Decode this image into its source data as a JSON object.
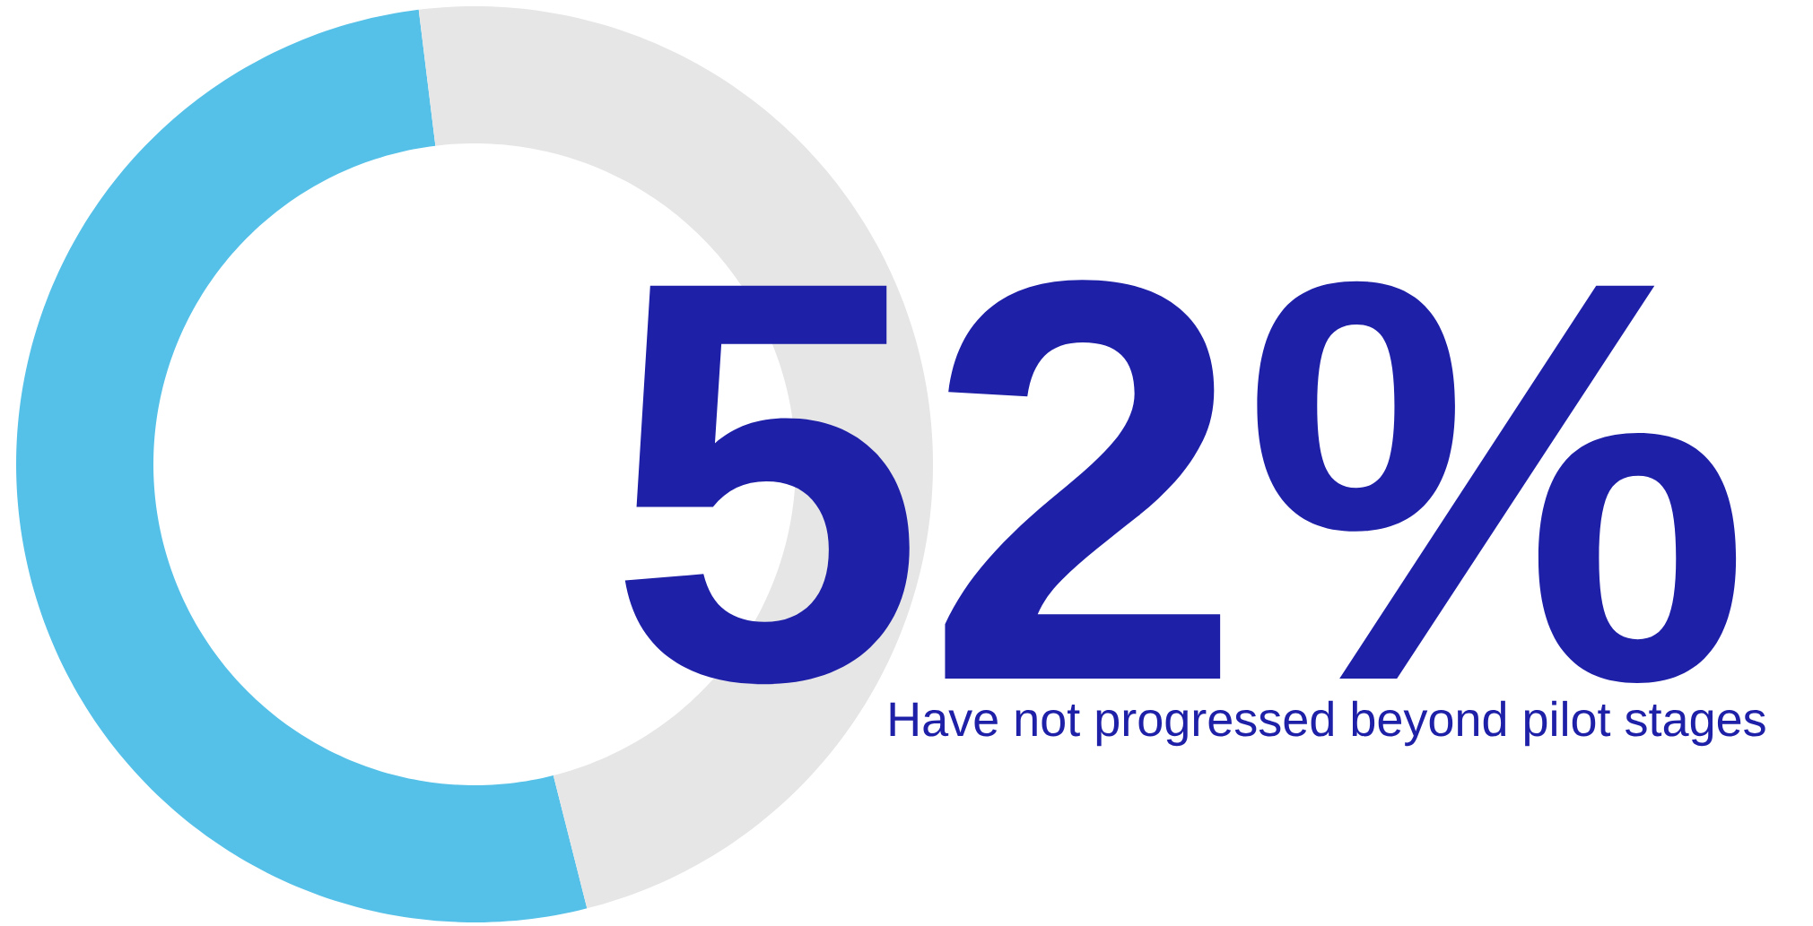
{
  "chart_data": {
    "type": "donut",
    "categories": [
      null,
      null
    ],
    "values": [
      52,
      48
    ],
    "colors": [
      "#56c1e8",
      "#e6e6e6"
    ],
    "annotations": [
      "52%",
      "Have not progressed beyond pilot stages"
    ]
  }
}
